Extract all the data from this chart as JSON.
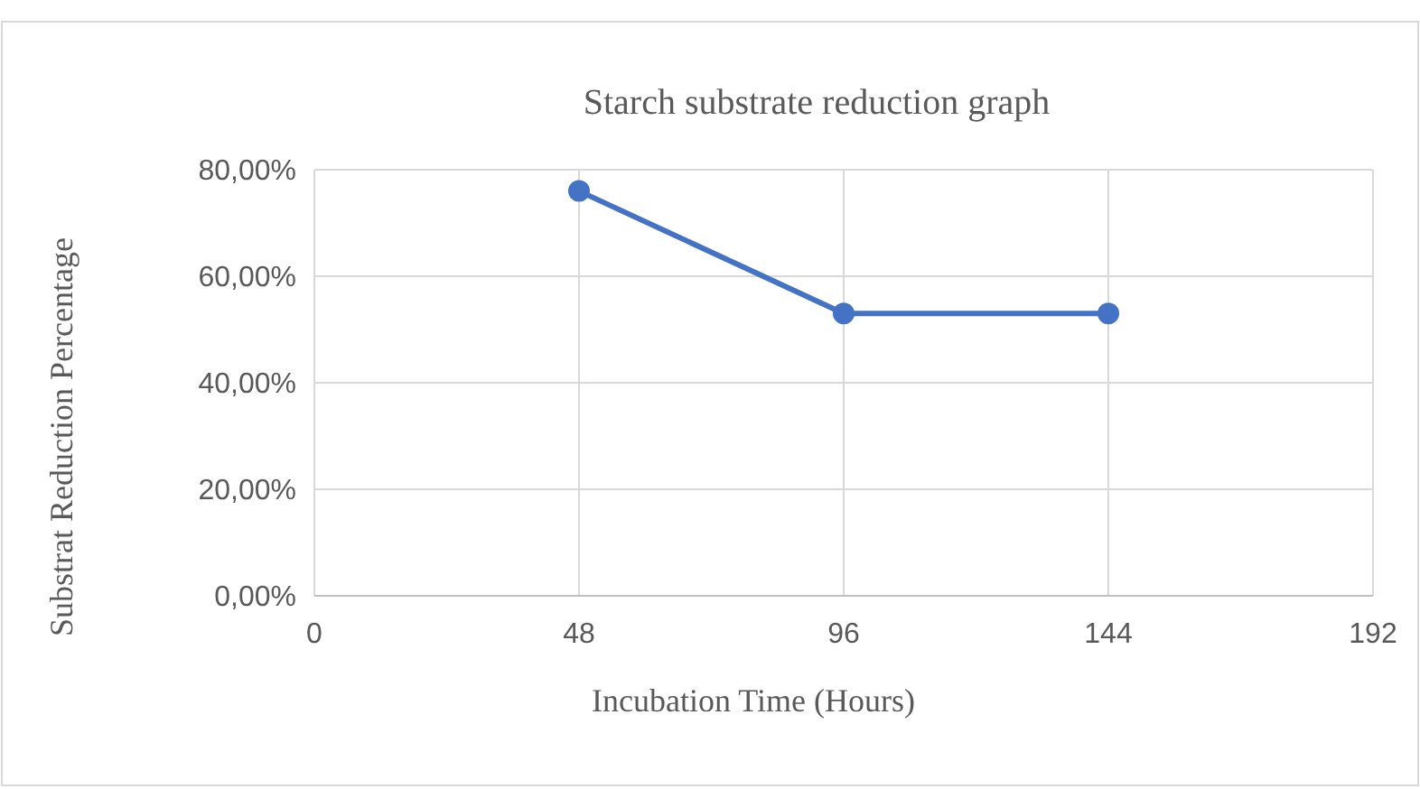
{
  "chart_data": {
    "type": "line",
    "title": "Starch substrate reduction graph",
    "xlabel": "Incubation Time (Hours)",
    "ylabel": "Substrat Reduction Percentage",
    "x": [
      48,
      96,
      144
    ],
    "series": [
      {
        "color": "#4472c4",
        "values": [
          76,
          53,
          53
        ]
      }
    ],
    "xlim": [
      0,
      192
    ],
    "xticks": [
      0,
      48,
      96,
      144,
      192
    ],
    "ylim": [
      0,
      80
    ],
    "yticks": [
      {
        "value": 0,
        "label": "0,00%"
      },
      {
        "value": 20,
        "label": "20,00%"
      },
      {
        "value": 40,
        "label": "40,00%"
      },
      {
        "value": 60,
        "label": "60,00%"
      },
      {
        "value": 80,
        "label": "80,00%"
      }
    ],
    "grid": true,
    "marker": "circle",
    "line_style": "solid"
  }
}
